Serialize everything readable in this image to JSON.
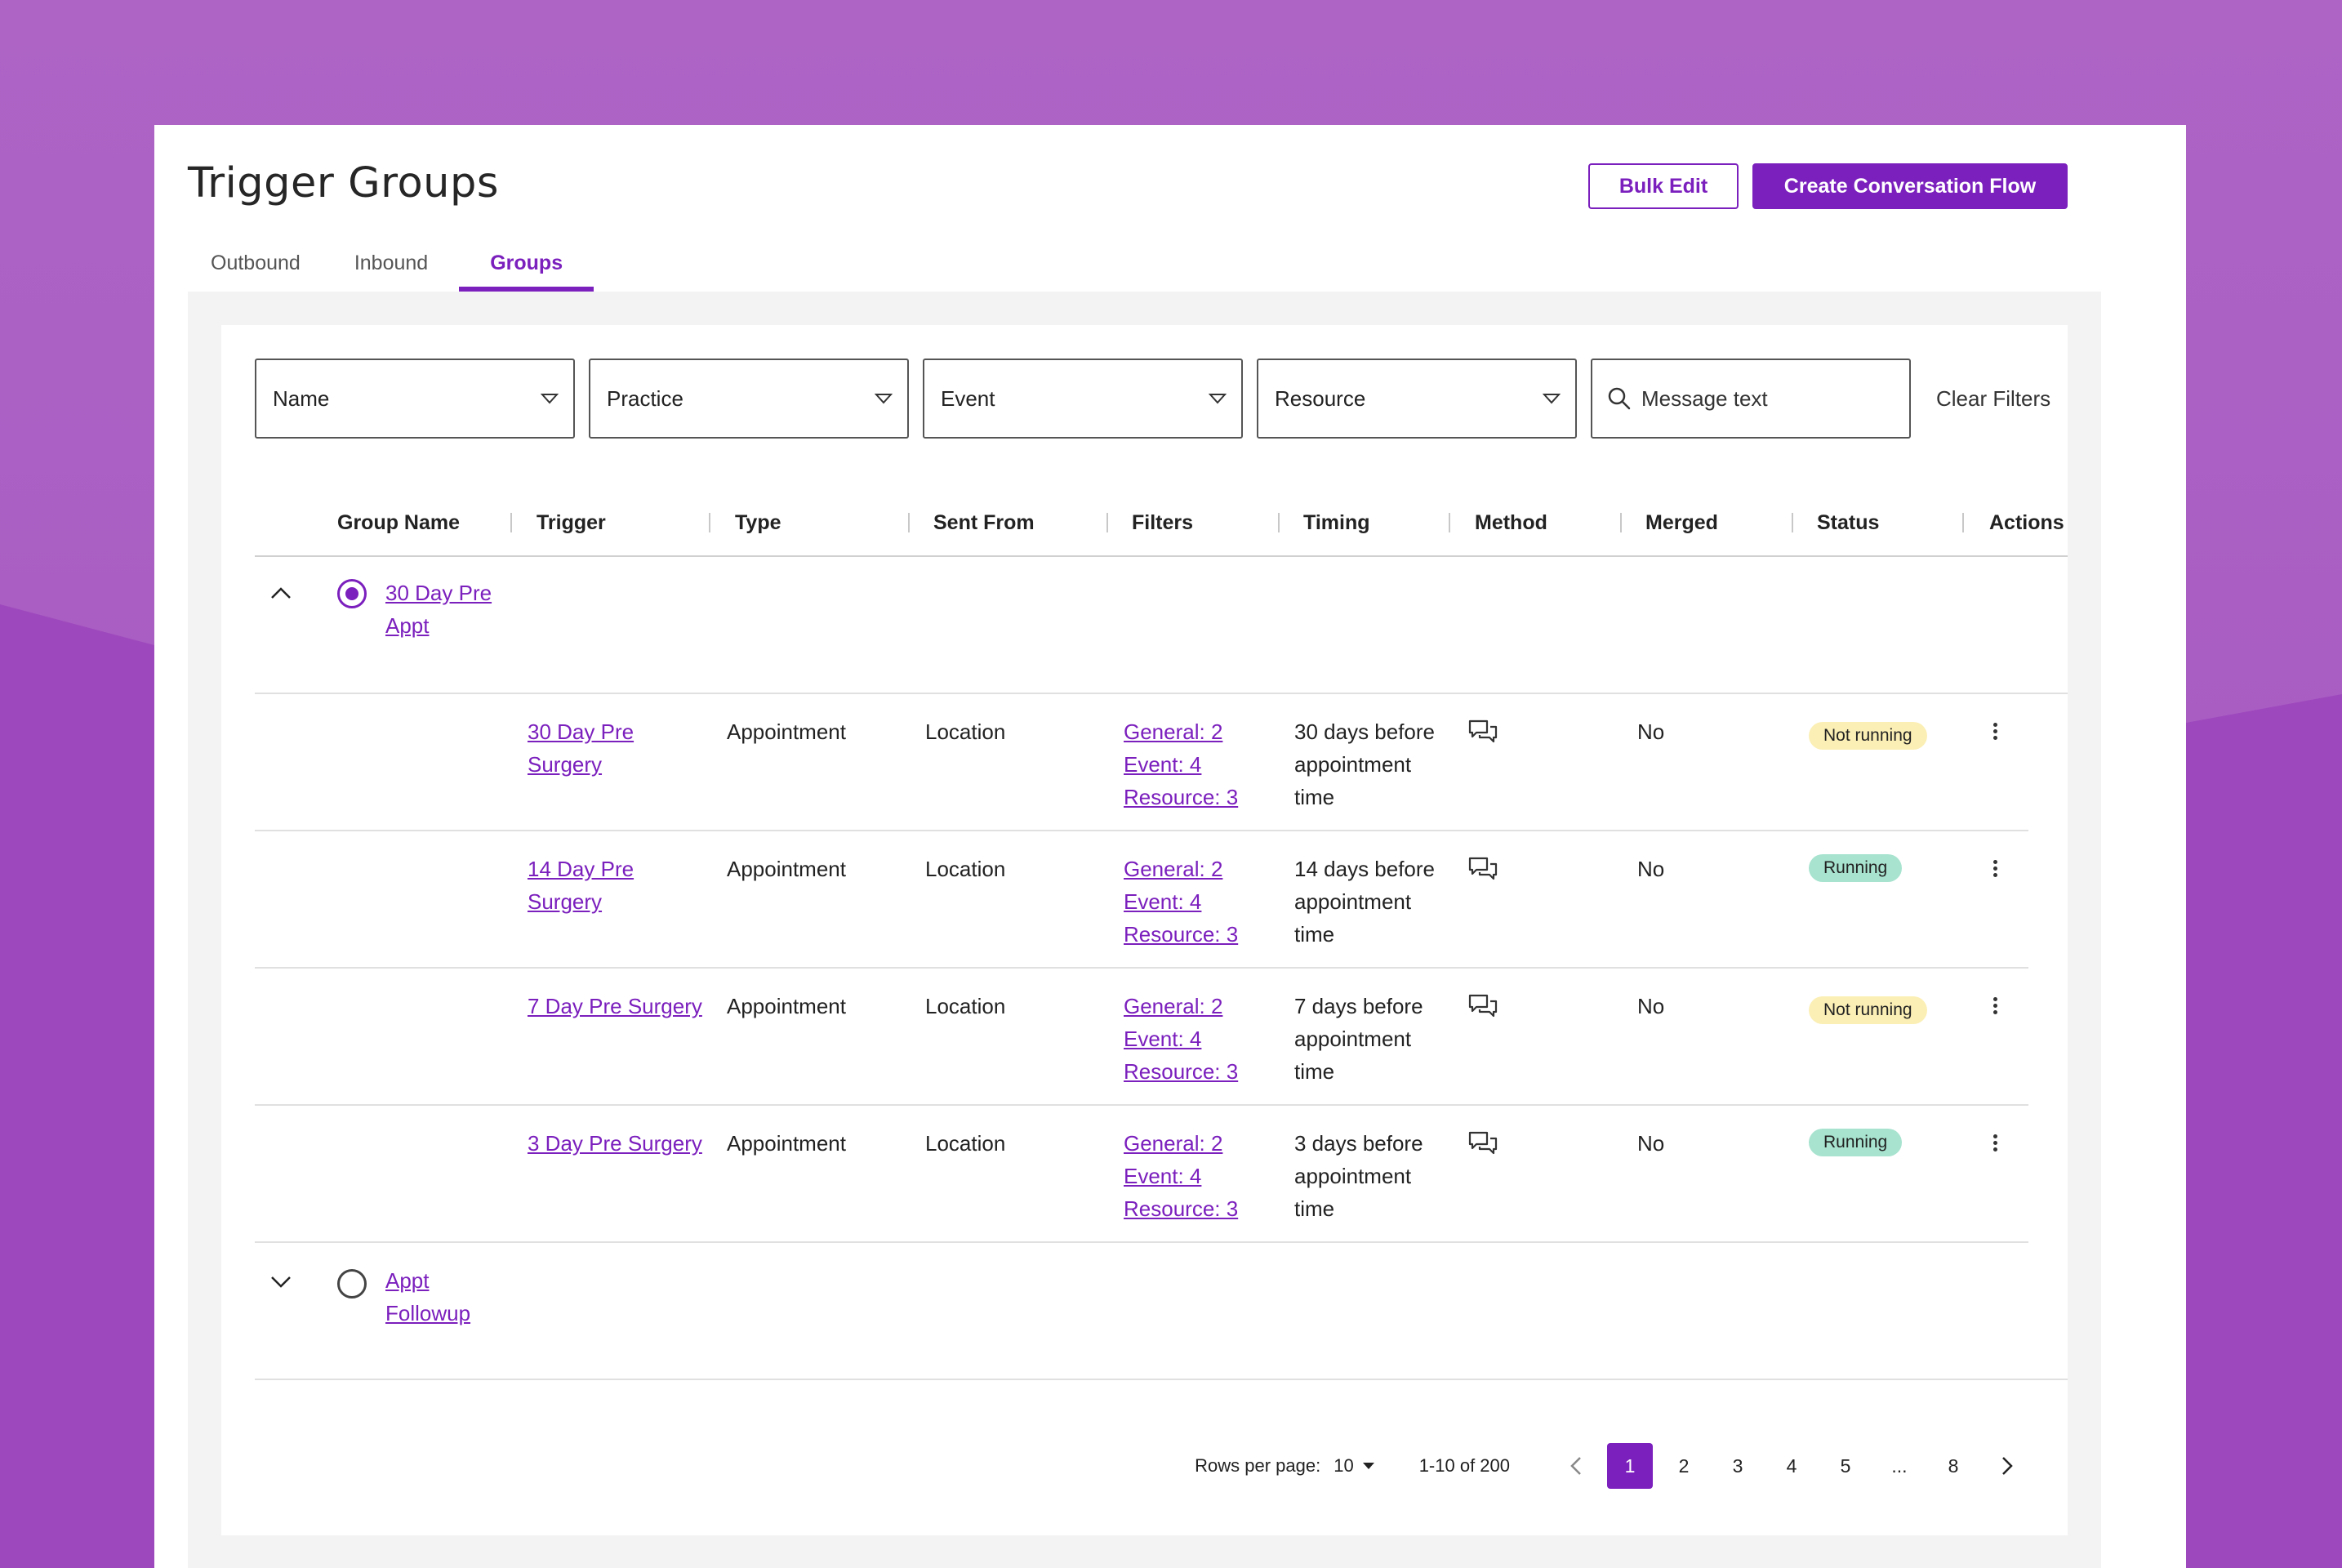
{
  "colors": {
    "accent": "#7b1fbd",
    "background": "#a55ec4",
    "badge_not_running": "#fbefb5",
    "badge_running": "#a7e3cf"
  },
  "header": {
    "title": "Trigger Groups",
    "bulk_edit_label": "Bulk Edit",
    "create_flow_label": "Create Conversation Flow"
  },
  "tabs": [
    {
      "label": "Outbound",
      "active": false
    },
    {
      "label": "Inbound",
      "active": false
    },
    {
      "label": "Groups",
      "active": true
    }
  ],
  "filters": {
    "name": "Name",
    "practice": "Practice",
    "event": "Event",
    "resource": "Resource",
    "search_placeholder": "Message text",
    "clear_label": "Clear Filters"
  },
  "table": {
    "columns": [
      "Group Name",
      "Trigger",
      "Type",
      "Sent From",
      "Filters",
      "Timing",
      "Method",
      "Merged",
      "Status",
      "Actions"
    ],
    "groups": [
      {
        "name_line1": "30 Day Pre",
        "name_line2": "Appt",
        "expanded": true,
        "selected": true,
        "triggers": [
          {
            "trigger_line1": "30 Day Pre",
            "trigger_line2": "Surgery",
            "type": "Appointment",
            "sent_from": "Location",
            "filter_general": "General: 2",
            "filter_event": "Event: 4",
            "filter_resource": "Resource: 3",
            "timing_line1": "30 days before",
            "timing_line2": "appointment",
            "timing_line3": "time",
            "method_icon": "chat-bubbles-icon",
            "merged": "No",
            "status": "Not running"
          },
          {
            "trigger_line1": "14 Day Pre",
            "trigger_line2": "Surgery",
            "type": "Appointment",
            "sent_from": "Location",
            "filter_general": "General: 2",
            "filter_event": "Event: 4",
            "filter_resource": "Resource: 3",
            "timing_line1": "14 days before",
            "timing_line2": "appointment",
            "timing_line3": "time",
            "method_icon": "chat-bubbles-icon",
            "merged": "No",
            "status": "Running"
          },
          {
            "trigger_line1": "7 Day Pre Surgery",
            "trigger_line2": "",
            "type": "Appointment",
            "sent_from": "Location",
            "filter_general": "General: 2",
            "filter_event": "Event: 4",
            "filter_resource": "Resource: 3",
            "timing_line1": "7 days before",
            "timing_line2": "appointment",
            "timing_line3": "time",
            "method_icon": "chat-bubbles-icon",
            "merged": "No",
            "status": "Not running"
          },
          {
            "trigger_line1": "3 Day Pre Surgery",
            "trigger_line2": "",
            "type": "Appointment",
            "sent_from": "Location",
            "filter_general": "General: 2",
            "filter_event": "Event: 4",
            "filter_resource": "Resource: 3",
            "timing_line1": "3 days before",
            "timing_line2": "appointment",
            "timing_line3": "time",
            "method_icon": "chat-bubbles-icon",
            "merged": "No",
            "status": "Running"
          }
        ]
      },
      {
        "name_line1": "Appt",
        "name_line2": "Followup",
        "expanded": false,
        "selected": false
      }
    ]
  },
  "pagination": {
    "rows_per_page_label": "Rows per page:",
    "rows_per_page": "10",
    "range": "1-10 of 200",
    "pages": [
      "1",
      "2",
      "3",
      "4",
      "5",
      "...",
      "8"
    ],
    "current_page": "1"
  }
}
